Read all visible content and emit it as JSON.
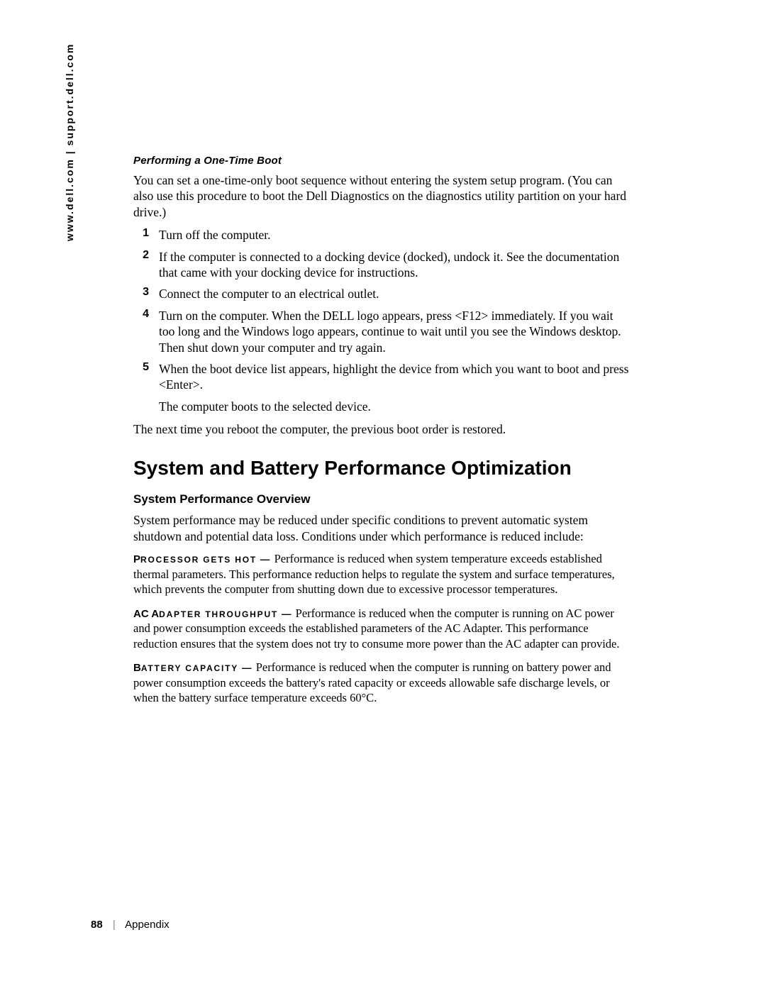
{
  "side_text": "www.dell.com | support.dell.com",
  "boot": {
    "heading": "Performing a One-Time Boot",
    "intro": "You can set a one-time-only boot sequence without entering the system setup program. (You can also use this procedure to boot the Dell Diagnostics on the diagnostics utility partition on your hard drive.)",
    "steps": [
      {
        "n": "1",
        "text": "Turn off the computer."
      },
      {
        "n": "2",
        "text": "If the computer is connected to a docking device (docked), undock it. See the documentation that came with your docking device for instructions."
      },
      {
        "n": "3",
        "text": "Connect the computer to an electrical outlet."
      },
      {
        "n": "4",
        "text": "Turn on the computer. When the DELL logo appears, press <F12> immediately. If you wait too long and the Windows logo appears, continue to wait until you see the Windows desktop. Then shut down your computer and try again."
      },
      {
        "n": "5",
        "text": "When the boot device list appears, highlight the device from which you want to boot and press <Enter>.",
        "followup": "The computer boots to the selected device."
      }
    ],
    "outro": "The next time you reboot the computer, the previous boot order is restored."
  },
  "section": {
    "heading": "System and Battery Performance Optimization",
    "sub_heading": "System Performance Overview",
    "intro": "System performance may be reduced under specific conditions to prevent automatic system shutdown and potential data loss. Conditions under which performance is reduced include:",
    "defs": [
      {
        "label_first": "P",
        "label_rest": "ROCESSOR GETS HOT",
        "sep": " — ",
        "body": "Performance is reduced when system temperature exceeds established thermal parameters. This performance reduction helps to regulate the system and surface temperatures, which prevents the computer from shutting down due to excessive processor temperatures."
      },
      {
        "label_first": "AC A",
        "label_rest": "DAPTER THROUGHPUT",
        "sep": " — ",
        "body": "Performance is reduced when the computer is running on AC power and power consumption exceeds the established parameters of the AC Adapter. This performance reduction ensures that the system does not try to consume more power than the AC adapter can provide."
      },
      {
        "label_first": "B",
        "label_rest": "ATTERY CAPACITY",
        "sep": " — ",
        "body": "Performance is reduced when the computer is running on battery power and power consumption exceeds the battery's rated capacity or exceeds allowable safe discharge levels, or when the battery surface temperature exceeds 60°C."
      }
    ]
  },
  "footer": {
    "page": "88",
    "separator": "|",
    "chapter": "Appendix"
  }
}
